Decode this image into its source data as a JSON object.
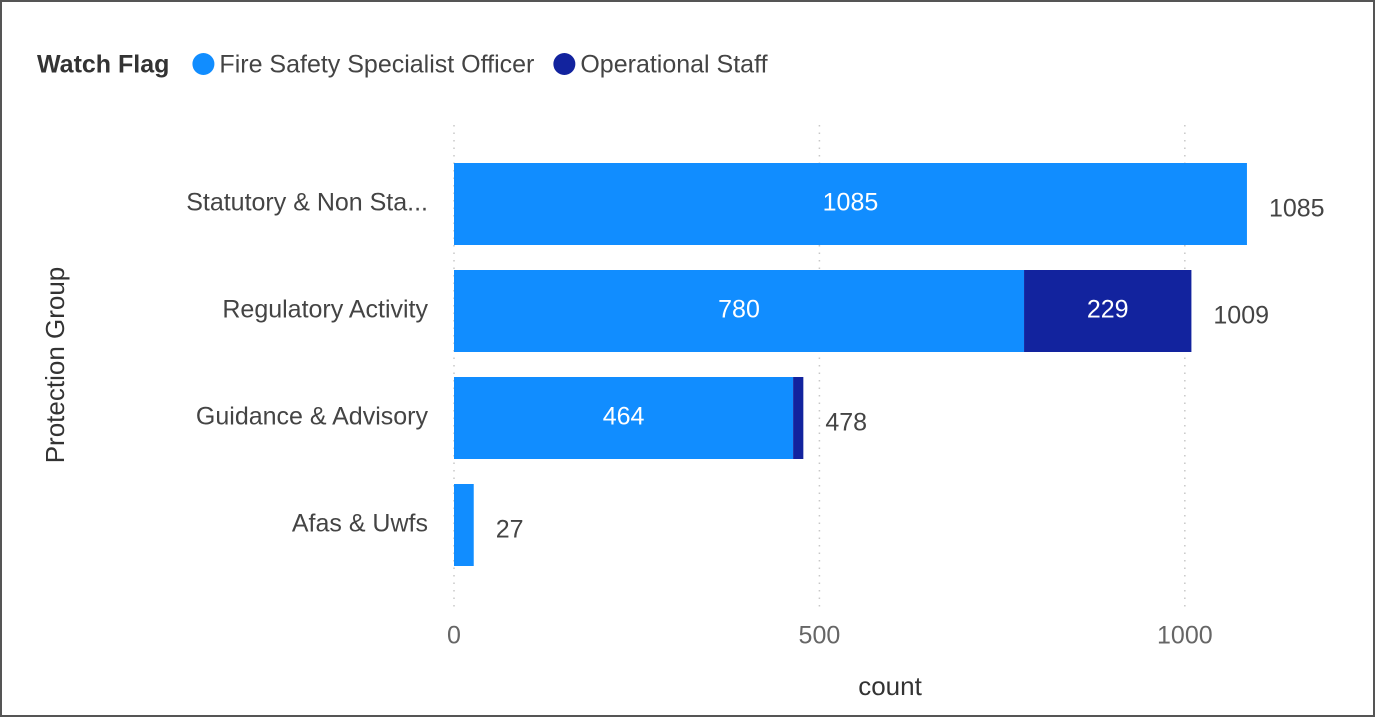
{
  "chart_data": {
    "type": "bar",
    "orientation": "horizontal",
    "stacked": true,
    "legend_title": "Watch Flag",
    "y_label": "Protection Group",
    "x_label": "count",
    "categories": [
      "Statutory & Non Sta...",
      "Regulatory Activity",
      "Guidance & Advisory",
      "Afas & Uwfs"
    ],
    "series": [
      {
        "name": "Fire Safety Specialist Officer",
        "color": "#118dff",
        "values": [
          1085,
          780,
          464,
          27
        ]
      },
      {
        "name": "Operational Staff",
        "color": "#12239e",
        "values": [
          null,
          229,
          14,
          null
        ]
      }
    ],
    "totals": [
      1085,
      1009,
      478,
      27
    ],
    "xlim": [
      0,
      1200
    ],
    "xticks": [
      0,
      500,
      1000
    ],
    "grid": true
  }
}
